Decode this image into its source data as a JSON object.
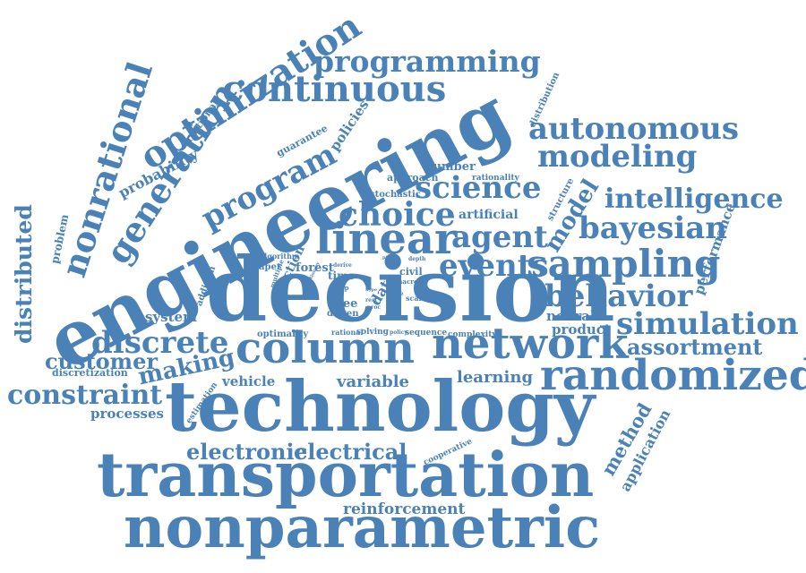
{
  "color": "#4a82b8",
  "words": [
    "engineering",
    "decision",
    "technology",
    "transportation",
    "nonparametric",
    "column",
    "network",
    "randomized",
    "linear",
    "sampling",
    "optimization",
    "continuous",
    "programming",
    "nonrational",
    "generation",
    "program",
    "science",
    "choice",
    "agent",
    "events",
    "autonomous",
    "modeling",
    "intelligence",
    "bayesian",
    "behavior",
    "simulation",
    "discrete",
    "constraint",
    "making",
    "customer",
    "assortment",
    "distributed",
    "electronic",
    "electrical",
    "reinforcement",
    "model",
    "variable",
    "learning",
    "processes",
    "vehicle",
    "system",
    "neural",
    "product",
    "method",
    "application",
    "performance",
    "probability",
    "policies",
    "guarantee",
    "irrational",
    "number",
    "approach",
    "artificial",
    "forest",
    "data",
    "action",
    "paper",
    "algorithm",
    "addition",
    "problem",
    "discretization",
    "estimation",
    "cooperative",
    "stochastic",
    "structure",
    "distribution",
    "rationality",
    "optimality",
    "rational",
    "solving",
    "sequence",
    "complexity",
    "tree",
    "time",
    "civil",
    "driven",
    "scale",
    "multiple",
    "macro",
    "step",
    "weak",
    "policy",
    "depth",
    "derive",
    "proc",
    "state",
    "rest",
    "hype",
    "stationary",
    "pick"
  ]
}
